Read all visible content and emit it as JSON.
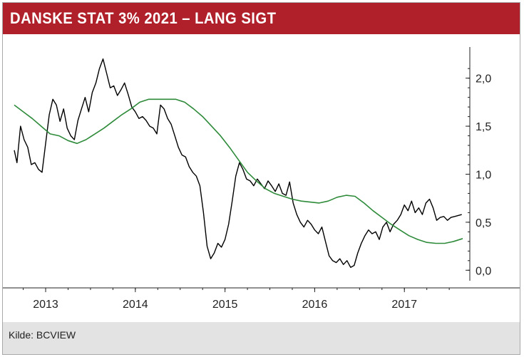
{
  "header": {
    "title": "DANSKE STAT 3% 2021 – LANG SIGT"
  },
  "footer": {
    "source": "Kilde: BCVIEW"
  },
  "colors": {
    "header_bg": "#b0202a",
    "price": "#000000",
    "moving_average": "#2e8b3a",
    "footer_bg": "#e3e3e3"
  },
  "chart_data": {
    "type": "line",
    "title": "DANSKE STAT 3% 2021 – LANG SIGT",
    "xlabel": "",
    "ylabel": "",
    "x_ticks": [
      "2013",
      "2014",
      "2015",
      "2016",
      "2017"
    ],
    "y_ticks": [
      "0,0",
      "0,5",
      "1,0",
      "1,5",
      "2,0"
    ],
    "xlim": [
      2012.65,
      2017.65
    ],
    "ylim": [
      -0.05,
      2.25
    ],
    "y_axis_position": "right",
    "grid": false,
    "legend": "none",
    "series": [
      {
        "key": "price",
        "color": "#000000",
        "x": [
          2012.65,
          2012.68,
          2012.72,
          2012.76,
          2012.8,
          2012.84,
          2012.88,
          2012.92,
          2012.96,
          2013.0,
          2013.04,
          2013.08,
          2013.12,
          2013.16,
          2013.2,
          2013.24,
          2013.28,
          2013.32,
          2013.36,
          2013.4,
          2013.44,
          2013.48,
          2013.52,
          2013.56,
          2013.6,
          2013.64,
          2013.68,
          2013.72,
          2013.76,
          2013.8,
          2013.84,
          2013.88,
          2013.92,
          2013.96,
          2014.0,
          2014.04,
          2014.08,
          2014.12,
          2014.16,
          2014.2,
          2014.24,
          2014.28,
          2014.32,
          2014.36,
          2014.4,
          2014.44,
          2014.48,
          2014.52,
          2014.56,
          2014.6,
          2014.64,
          2014.68,
          2014.72,
          2014.76,
          2014.8,
          2014.84,
          2014.88,
          2014.92,
          2014.96,
          2015.0,
          2015.04,
          2015.08,
          2015.12,
          2015.16,
          2015.2,
          2015.24,
          2015.28,
          2015.32,
          2015.36,
          2015.4,
          2015.44,
          2015.48,
          2015.52,
          2015.56,
          2015.6,
          2015.64,
          2015.68,
          2015.72,
          2015.76,
          2015.8,
          2015.84,
          2015.88,
          2015.92,
          2015.96,
          2016.0,
          2016.04,
          2016.08,
          2016.12,
          2016.16,
          2016.2,
          2016.24,
          2016.28,
          2016.32,
          2016.36,
          2016.4,
          2016.44,
          2016.48,
          2016.52,
          2016.56,
          2016.6,
          2016.64,
          2016.68,
          2016.72,
          2016.76,
          2016.8,
          2016.84,
          2016.88,
          2016.92,
          2016.96,
          2017.0,
          2017.04,
          2017.08,
          2017.12,
          2017.16,
          2017.2,
          2017.24,
          2017.28,
          2017.32,
          2017.36,
          2017.4,
          2017.44,
          2017.48,
          2017.52,
          2017.56,
          2017.6,
          2017.64
        ],
        "values": [
          1.25,
          1.12,
          1.5,
          1.36,
          1.28,
          1.1,
          1.12,
          1.05,
          1.02,
          1.32,
          1.62,
          1.78,
          1.72,
          1.55,
          1.68,
          1.48,
          1.4,
          1.36,
          1.56,
          1.68,
          1.8,
          1.65,
          1.85,
          1.95,
          2.1,
          2.2,
          2.05,
          1.9,
          1.92,
          1.82,
          1.88,
          1.95,
          1.83,
          1.7,
          1.65,
          1.58,
          1.6,
          1.56,
          1.5,
          1.48,
          1.42,
          1.72,
          1.68,
          1.58,
          1.52,
          1.4,
          1.28,
          1.2,
          1.18,
          1.08,
          1.02,
          0.98,
          0.88,
          0.6,
          0.25,
          0.12,
          0.18,
          0.28,
          0.24,
          0.32,
          0.48,
          0.72,
          0.98,
          1.12,
          1.05,
          0.95,
          0.93,
          0.88,
          0.95,
          0.9,
          0.85,
          0.93,
          0.88,
          0.82,
          0.9,
          0.8,
          0.78,
          0.92,
          0.7,
          0.58,
          0.5,
          0.45,
          0.52,
          0.48,
          0.42,
          0.38,
          0.45,
          0.3,
          0.15,
          0.1,
          0.08,
          0.12,
          0.06,
          0.1,
          0.03,
          0.05,
          0.18,
          0.28,
          0.36,
          0.42,
          0.38,
          0.4,
          0.32,
          0.45,
          0.5,
          0.4,
          0.48,
          0.52,
          0.58,
          0.68,
          0.62,
          0.72,
          0.6,
          0.65,
          0.58,
          0.7,
          0.74,
          0.65,
          0.52,
          0.55,
          0.56,
          0.52,
          0.55,
          0.56,
          0.57,
          0.58
        ],
        "name": ""
      },
      {
        "key": "moving_average",
        "color": "#2e8b3a",
        "x": [
          2012.65,
          2012.75,
          2012.85,
          2012.95,
          2013.05,
          2013.15,
          2013.25,
          2013.35,
          2013.45,
          2013.55,
          2013.65,
          2013.75,
          2013.85,
          2013.95,
          2014.05,
          2014.15,
          2014.25,
          2014.35,
          2014.45,
          2014.55,
          2014.65,
          2014.75,
          2014.85,
          2014.95,
          2015.05,
          2015.15,
          2015.25,
          2015.35,
          2015.45,
          2015.55,
          2015.65,
          2015.75,
          2015.85,
          2015.95,
          2016.05,
          2016.15,
          2016.25,
          2016.35,
          2016.45,
          2016.55,
          2016.65,
          2016.75,
          2016.85,
          2016.95,
          2017.05,
          2017.15,
          2017.25,
          2017.35,
          2017.45,
          2017.55,
          2017.65
        ],
        "values": [
          1.72,
          1.65,
          1.58,
          1.5,
          1.42,
          1.4,
          1.35,
          1.32,
          1.36,
          1.42,
          1.48,
          1.55,
          1.62,
          1.68,
          1.75,
          1.78,
          1.78,
          1.78,
          1.78,
          1.75,
          1.68,
          1.6,
          1.5,
          1.4,
          1.28,
          1.15,
          1.02,
          0.93,
          0.85,
          0.8,
          0.77,
          0.74,
          0.72,
          0.71,
          0.7,
          0.72,
          0.76,
          0.78,
          0.77,
          0.7,
          0.62,
          0.55,
          0.48,
          0.42,
          0.36,
          0.32,
          0.29,
          0.28,
          0.28,
          0.3,
          0.33
        ],
        "name": ""
      }
    ]
  }
}
